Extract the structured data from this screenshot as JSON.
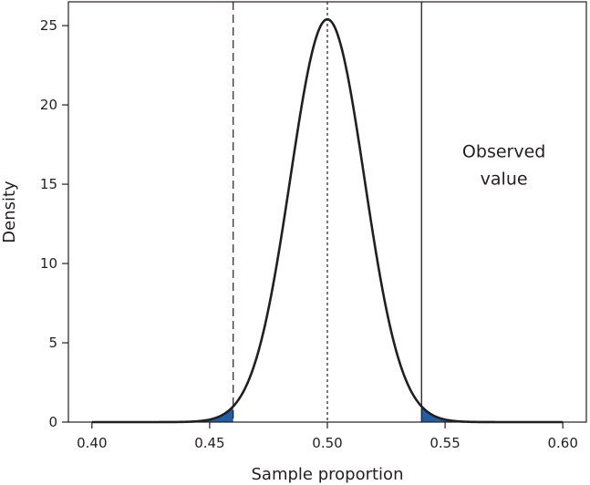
{
  "chart_data": {
    "type": "line",
    "title": "",
    "xlabel": "Sample proportion",
    "ylabel": "Density",
    "xlim": [
      0.39,
      0.61
    ],
    "ylim": [
      0,
      26.5
    ],
    "x_ticks": [
      0.4,
      0.45,
      0.5,
      0.55,
      0.6
    ],
    "x_tick_labels": [
      "0.40",
      "0.45",
      "0.50",
      "0.55",
      "0.60"
    ],
    "y_ticks": [
      0,
      5,
      10,
      15,
      20,
      25
    ],
    "y_tick_labels": [
      "0",
      "5",
      "10",
      "15",
      "20",
      "25"
    ],
    "grid": false,
    "series": [
      {
        "distribution": "normal",
        "mean": 0.5,
        "sd": 0.0157,
        "x_range": [
          0.4,
          0.6
        ],
        "peak_density": 25.4,
        "color": "#231f20"
      }
    ],
    "shaded_tails": {
      "color": "#1f5fa8",
      "lower_tail_upper_bound": 0.46,
      "upper_tail_lower_bound": 0.54
    },
    "reference_lines": [
      {
        "x": 0.46,
        "style": "dashed"
      },
      {
        "x": 0.5,
        "style": "dotted"
      },
      {
        "x": 0.54,
        "style": "solid"
      }
    ],
    "annotations": [
      {
        "lines": [
          "Observed",
          "value"
        ],
        "x": 0.575,
        "y": 16.7
      }
    ]
  }
}
